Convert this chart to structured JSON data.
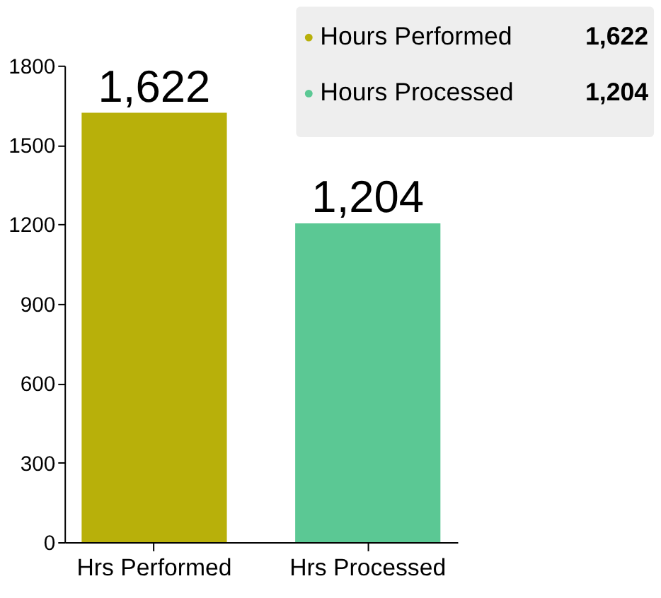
{
  "chart_data": {
    "type": "bar",
    "categories": [
      "Hrs Performed",
      "Hrs Processed"
    ],
    "series": [
      {
        "name": "Hours Performed",
        "color": "#b8b00a",
        "values": [
          1622,
          null
        ],
        "value_labels": [
          "1,622",
          null
        ]
      },
      {
        "name": "Hours Processed",
        "color": "#5bc894",
        "values": [
          null,
          1204
        ],
        "value_labels": [
          null,
          "1,204"
        ]
      }
    ],
    "ylim": [
      0,
      1800
    ],
    "yticks": [
      0,
      300,
      600,
      900,
      1200,
      1500,
      1800
    ],
    "grid": false,
    "legend": "top right"
  }
}
